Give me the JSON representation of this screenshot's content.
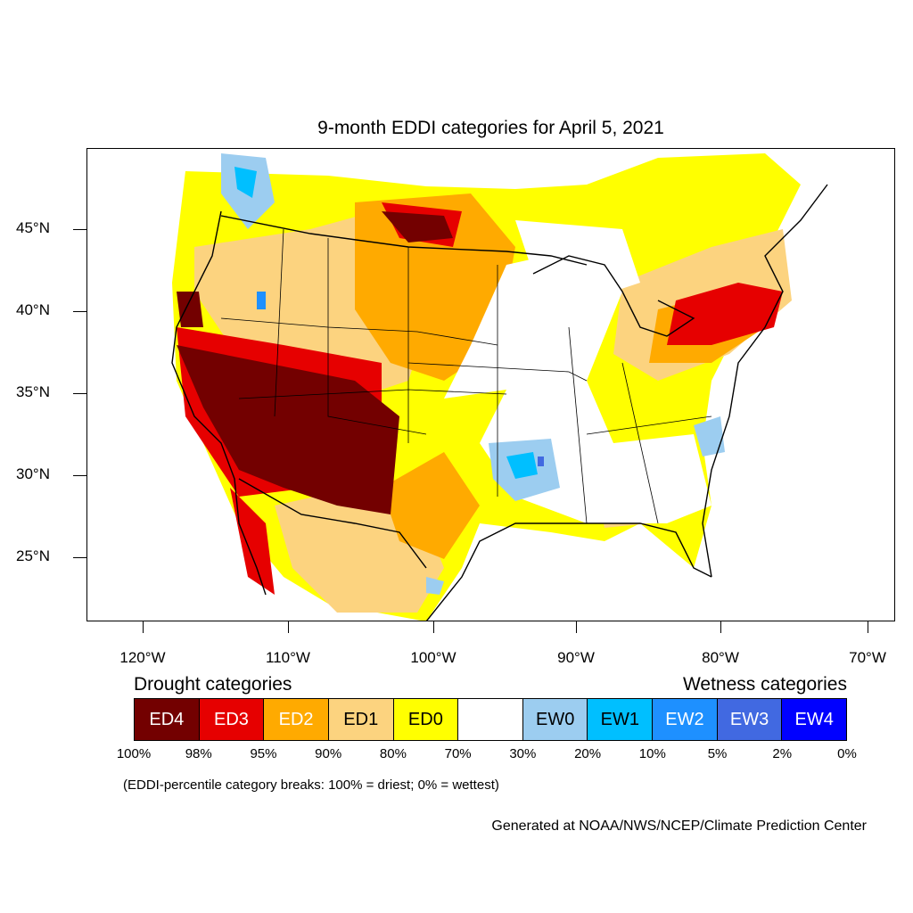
{
  "title": "9-month EDDI categories for April 5, 2021",
  "lat_labels": [
    "45°N",
    "40°N",
    "35°N",
    "30°N",
    "25°N"
  ],
  "lon_labels": [
    "120°W",
    "110°W",
    "100°W",
    "90°W",
    "80°W",
    "70°W"
  ],
  "legend": {
    "drought_heading": "Drought categories",
    "wetness_heading": "Wetness categories",
    "categories": [
      {
        "label": "ED4",
        "color": "#730000",
        "text_color": "#ffffff"
      },
      {
        "label": "ED3",
        "color": "#e60000",
        "text_color": "#ffffff"
      },
      {
        "label": "ED2",
        "color": "#ffaa00",
        "text_color": "#ffffff"
      },
      {
        "label": "ED1",
        "color": "#fcd37f",
        "text_color": "#000000"
      },
      {
        "label": "ED0",
        "color": "#ffff00",
        "text_color": "#000000"
      },
      {
        "label": "",
        "color": "#ffffff",
        "text_color": "#000000"
      },
      {
        "label": "EW0",
        "color": "#9ccdf0",
        "text_color": "#000000"
      },
      {
        "label": "EW1",
        "color": "#00bfff",
        "text_color": "#000000"
      },
      {
        "label": "EW2",
        "color": "#1e90ff",
        "text_color": "#ffffff"
      },
      {
        "label": "EW3",
        "color": "#4169e1",
        "text_color": "#ffffff"
      },
      {
        "label": "EW4",
        "color": "#0000ff",
        "text_color": "#ffffff"
      }
    ],
    "breaks": [
      "100%",
      "98%",
      "95%",
      "90%",
      "80%",
      "70%",
      "30%",
      "20%",
      "10%",
      "5%",
      "2%",
      "0%"
    ]
  },
  "note": "(EDDI-percentile category breaks: 100% = driest; 0% = wettest)",
  "credit": "Generated at NOAA/NWS/NCEP/Climate Prediction Center"
}
